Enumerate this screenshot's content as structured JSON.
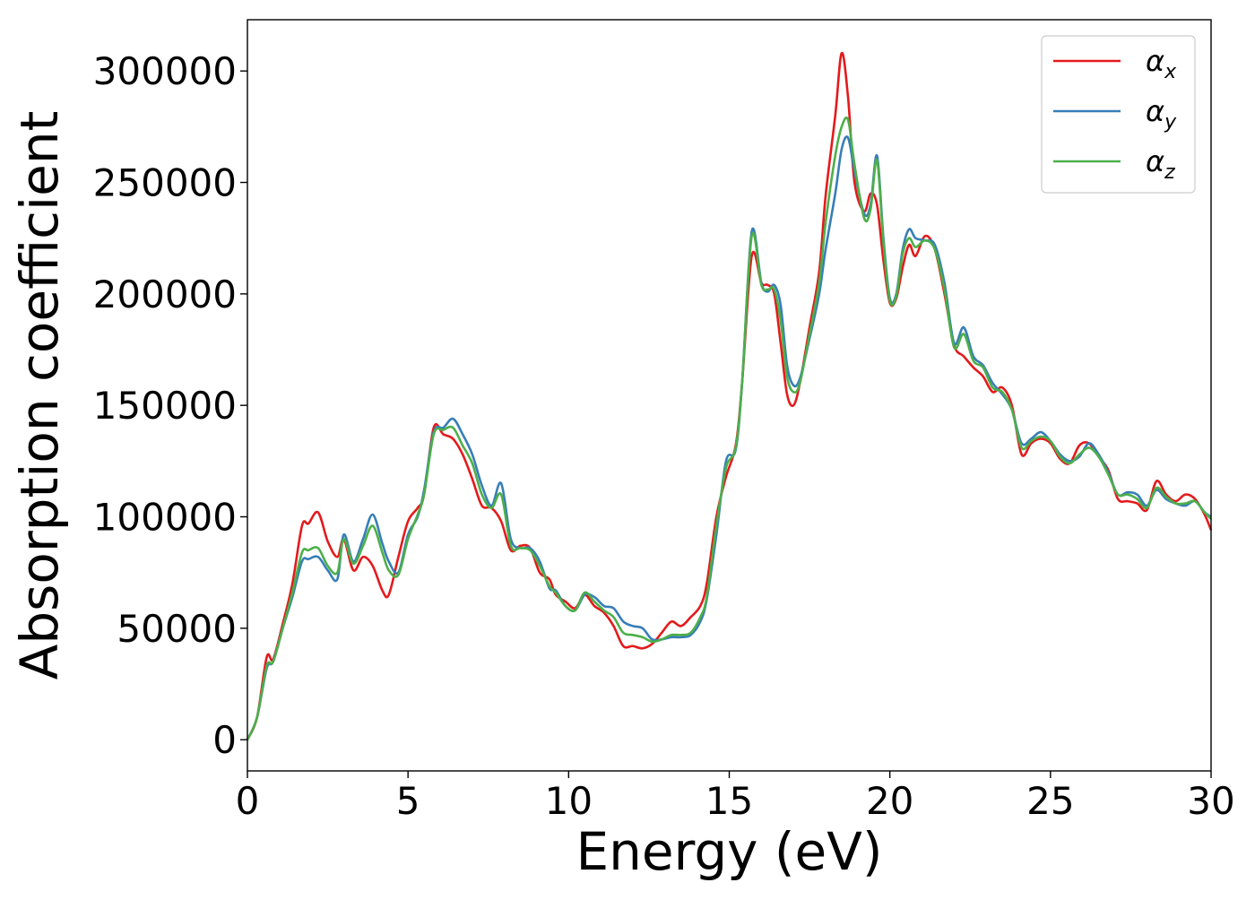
{
  "chart_data": {
    "type": "line",
    "xlabel": "Energy (eV)",
    "ylabel": "Absorption coefficient",
    "xlim": [
      0,
      30
    ],
    "ylim": [
      -14000,
      323000
    ],
    "xticks": [
      0,
      5,
      10,
      15,
      20,
      25,
      30
    ],
    "yticks": [
      0,
      50000,
      100000,
      150000,
      200000,
      250000,
      300000
    ],
    "xtick_labels": [
      "0",
      "5",
      "10",
      "15",
      "20",
      "25",
      "30"
    ],
    "ytick_labels": [
      "0",
      "50000",
      "100000",
      "150000",
      "200000",
      "250000",
      "300000"
    ],
    "grid": false,
    "legend_position": "top-right",
    "series": [
      {
        "name": "αx",
        "legend_main": "α",
        "legend_sub": "x",
        "color": "#e41a1c",
        "x": [
          0,
          0.3,
          0.6,
          0.8,
          1.1,
          1.4,
          1.7,
          1.9,
          2.2,
          2.5,
          2.8,
          3.0,
          3.3,
          3.6,
          3.9,
          4.2,
          4.4,
          4.7,
          5.0,
          5.3,
          5.5,
          5.8,
          6.1,
          6.4,
          6.7,
          7.0,
          7.3,
          7.6,
          7.9,
          8.2,
          8.5,
          8.8,
          9.1,
          9.4,
          9.6,
          9.9,
          10.2,
          10.5,
          10.8,
          11.1,
          11.4,
          11.7,
          12.0,
          12.3,
          12.6,
          12.9,
          13.2,
          13.5,
          13.8,
          14.1,
          14.3,
          14.6,
          14.9,
          15.2,
          15.4,
          15.7,
          16.0,
          16.2,
          16.4,
          16.6,
          16.8,
          17.0,
          17.2,
          17.5,
          17.8,
          18.0,
          18.3,
          18.5,
          18.7,
          18.9,
          19.2,
          19.4,
          19.6,
          19.8,
          20.0,
          20.2,
          20.4,
          20.6,
          20.8,
          21.1,
          21.4,
          21.7,
          22.0,
          22.3,
          22.6,
          22.9,
          23.2,
          23.5,
          23.8,
          24.1,
          24.4,
          24.7,
          25.0,
          25.3,
          25.6,
          25.9,
          26.2,
          26.5,
          26.8,
          27.1,
          27.4,
          27.7,
          28.0,
          28.3,
          28.6,
          28.9,
          29.2,
          29.5,
          29.8,
          30.0
        ],
        "y": [
          0,
          10000,
          37000,
          36000,
          52000,
          70000,
          96000,
          97000,
          102000,
          89000,
          82000,
          90000,
          76000,
          82000,
          78000,
          67000,
          65000,
          82000,
          98000,
          104000,
          110000,
          140000,
          137000,
          135000,
          128000,
          117000,
          105000,
          104000,
          98000,
          85000,
          87000,
          86000,
          75000,
          72000,
          65000,
          62000,
          59000,
          65000,
          60000,
          57000,
          51000,
          42000,
          42000,
          41000,
          43000,
          48000,
          53000,
          51000,
          55000,
          60000,
          70000,
          100000,
          118000,
          132000,
          160000,
          217000,
          205000,
          204000,
          200000,
          178000,
          155000,
          150000,
          160000,
          185000,
          210000,
          244000,
          280000,
          308000,
          288000,
          250000,
          237000,
          245000,
          240000,
          215000,
          196000,
          198000,
          212000,
          222000,
          217000,
          226000,
          220000,
          200000,
          177000,
          172000,
          167000,
          163000,
          156000,
          158000,
          150000,
          128000,
          133000,
          135000,
          133000,
          126000,
          124000,
          132000,
          133000,
          127000,
          121000,
          108000,
          107000,
          106000,
          103000,
          116000,
          110000,
          107000,
          110000,
          108000,
          101000,
          94000
        ]
      },
      {
        "name": "αy",
        "legend_main": "α",
        "legend_sub": "y",
        "color": "#377eb8",
        "x": [
          0,
          0.3,
          0.6,
          0.8,
          1.1,
          1.4,
          1.7,
          1.9,
          2.2,
          2.5,
          2.8,
          3.0,
          3.3,
          3.6,
          3.9,
          4.2,
          4.4,
          4.7,
          5.0,
          5.3,
          5.5,
          5.8,
          6.1,
          6.4,
          6.7,
          7.0,
          7.3,
          7.6,
          7.9,
          8.2,
          8.5,
          8.8,
          9.1,
          9.4,
          9.6,
          9.9,
          10.2,
          10.5,
          10.8,
          11.1,
          11.4,
          11.7,
          12.0,
          12.3,
          12.6,
          12.9,
          13.2,
          13.5,
          13.8,
          14.1,
          14.3,
          14.6,
          14.9,
          15.2,
          15.4,
          15.7,
          16.0,
          16.2,
          16.4,
          16.6,
          16.8,
          17.0,
          17.2,
          17.5,
          17.8,
          18.0,
          18.3,
          18.5,
          18.7,
          18.9,
          19.2,
          19.4,
          19.6,
          19.8,
          20.0,
          20.2,
          20.4,
          20.6,
          20.8,
          21.1,
          21.4,
          21.7,
          22.0,
          22.3,
          22.6,
          22.9,
          23.2,
          23.5,
          23.8,
          24.1,
          24.4,
          24.7,
          25.0,
          25.3,
          25.6,
          25.9,
          26.2,
          26.5,
          26.8,
          27.1,
          27.4,
          27.7,
          28.0,
          28.3,
          28.6,
          28.9,
          29.2,
          29.5,
          29.8,
          30.0
        ],
        "y": [
          0,
          10000,
          32000,
          35000,
          50000,
          64000,
          80000,
          81000,
          82000,
          76000,
          72000,
          92000,
          80000,
          90000,
          101000,
          88000,
          80000,
          75000,
          92000,
          100000,
          112000,
          138000,
          140000,
          144000,
          137000,
          128000,
          114000,
          105000,
          115000,
          90000,
          86000,
          86000,
          80000,
          68000,
          67000,
          60000,
          58000,
          65000,
          64000,
          60000,
          59000,
          53000,
          51000,
          50000,
          45000,
          45000,
          46000,
          46000,
          47000,
          53000,
          63000,
          92000,
          125000,
          130000,
          160000,
          228000,
          205000,
          201000,
          204000,
          195000,
          168000,
          159000,
          162000,
          180000,
          200000,
          220000,
          245000,
          265000,
          270000,
          255000,
          236000,
          240000,
          262000,
          225000,
          198000,
          200000,
          220000,
          229000,
          225000,
          224000,
          222000,
          205000,
          178000,
          185000,
          172000,
          168000,
          160000,
          155000,
          148000,
          133000,
          135000,
          138000,
          134000,
          128000,
          125000,
          127000,
          133000,
          128000,
          120000,
          110000,
          111000,
          110000,
          105000,
          112000,
          108000,
          106000,
          105000,
          107000,
          102000,
          100000
        ]
      },
      {
        "name": "αz",
        "legend_main": "α",
        "legend_sub": "z",
        "color": "#4daf4a",
        "x": [
          0,
          0.3,
          0.6,
          0.8,
          1.1,
          1.4,
          1.7,
          1.9,
          2.2,
          2.5,
          2.8,
          3.0,
          3.3,
          3.6,
          3.9,
          4.2,
          4.4,
          4.7,
          5.0,
          5.3,
          5.5,
          5.8,
          6.1,
          6.4,
          6.7,
          7.0,
          7.3,
          7.6,
          7.9,
          8.2,
          8.5,
          8.8,
          9.1,
          9.4,
          9.6,
          9.9,
          10.2,
          10.5,
          10.8,
          11.1,
          11.4,
          11.7,
          12.0,
          12.3,
          12.6,
          12.9,
          13.2,
          13.5,
          13.8,
          14.1,
          14.3,
          14.6,
          14.9,
          15.2,
          15.4,
          15.7,
          16.0,
          16.2,
          16.4,
          16.6,
          16.8,
          17.0,
          17.2,
          17.5,
          17.8,
          18.0,
          18.3,
          18.5,
          18.7,
          18.9,
          19.2,
          19.4,
          19.6,
          19.8,
          20.0,
          20.2,
          20.4,
          20.6,
          20.8,
          21.1,
          21.4,
          21.7,
          22.0,
          22.3,
          22.6,
          22.9,
          23.2,
          23.5,
          23.8,
          24.1,
          24.4,
          24.7,
          25.0,
          25.3,
          25.6,
          25.9,
          26.2,
          26.5,
          26.8,
          27.1,
          27.4,
          27.7,
          28.0,
          28.3,
          28.6,
          28.9,
          29.2,
          29.5,
          29.8,
          30.0
        ],
        "y": [
          0,
          10000,
          33000,
          35000,
          50000,
          66000,
          84000,
          85000,
          86000,
          78000,
          75000,
          90000,
          79000,
          87000,
          96000,
          84000,
          76000,
          74000,
          90000,
          101000,
          110000,
          137000,
          139000,
          140000,
          132000,
          124000,
          110000,
          104000,
          110000,
          87000,
          86000,
          85000,
          78000,
          69000,
          66000,
          60000,
          58000,
          66000,
          62000,
          58000,
          55000,
          48000,
          47000,
          46000,
          44000,
          45000,
          47000,
          47000,
          48000,
          55000,
          64000,
          96000,
          122000,
          131000,
          160000,
          226000,
          204000,
          202000,
          202000,
          188000,
          163000,
          156000,
          160000,
          182000,
          205000,
          232000,
          262000,
          275000,
          278000,
          258000,
          234000,
          238000,
          260000,
          223000,
          197000,
          199000,
          218000,
          225000,
          221000,
          224000,
          220000,
          202000,
          176000,
          182000,
          170000,
          167000,
          158000,
          156000,
          148000,
          131000,
          134000,
          136000,
          134000,
          127000,
          124000,
          128000,
          131000,
          127000,
          119000,
          110000,
          110000,
          108000,
          104000,
          113000,
          109000,
          106000,
          106000,
          107000,
          102000,
          99000
        ]
      }
    ]
  }
}
